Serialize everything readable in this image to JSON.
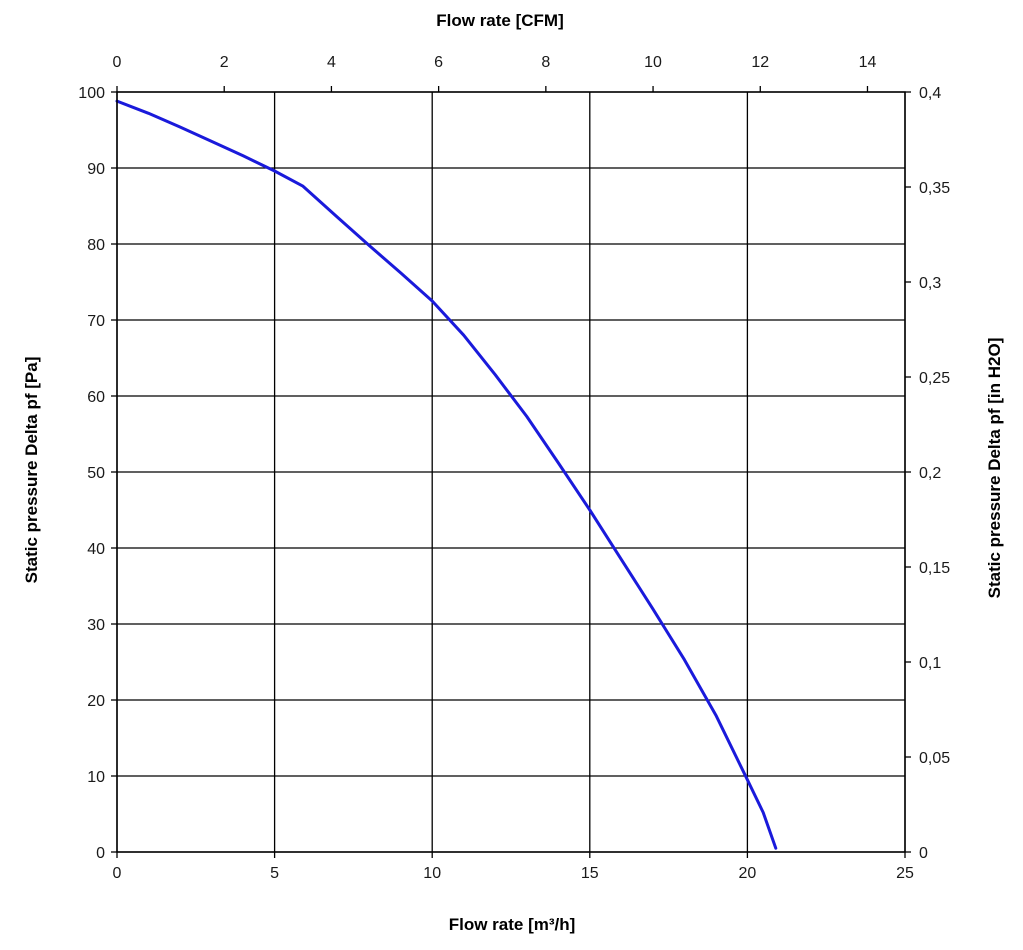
{
  "chart_data": {
    "type": "line",
    "title": "",
    "xlabel": "Flow rate [m³/h]",
    "ylabel": "Static pressure Delta pf [Pa]",
    "x2label": "Flow rate [CFM]",
    "y2label": "Static pressure Delta pf [in H2O]",
    "xlim": [
      0,
      25
    ],
    "ylim": [
      0,
      100
    ],
    "x2lim": [
      0,
      14.7
    ],
    "y2lim": [
      0,
      0.4
    ],
    "x_ticks": [
      "0",
      "5",
      "10",
      "15",
      "20",
      "25"
    ],
    "y_ticks": [
      "0",
      "10",
      "20",
      "30",
      "40",
      "50",
      "60",
      "70",
      "80",
      "90",
      "100"
    ],
    "x2_ticks": [
      "0",
      "2",
      "4",
      "6",
      "8",
      "10",
      "12",
      "14"
    ],
    "y2_ticks": [
      "0",
      "0,05",
      "0,1",
      "0,15",
      "0,2",
      "0,25",
      "0,3",
      "0,35",
      "0,4"
    ],
    "grid": true,
    "series": [
      {
        "color": "#1a1adb",
        "x": [
          0,
          1,
          2,
          3,
          4,
          5,
          5.9,
          7,
          8,
          9,
          10,
          11,
          12,
          13,
          14,
          15,
          16,
          17,
          18,
          19,
          20,
          20.5,
          20.9
        ],
        "y": [
          98.8,
          97.2,
          95.4,
          93.5,
          91.6,
          89.6,
          87.6,
          83.5,
          79.8,
          76.2,
          72.5,
          68.0,
          62.8,
          57.3,
          51.2,
          45.0,
          38.5,
          32.0,
          25.3,
          18.0,
          9.5,
          5.2,
          0.5
        ]
      }
    ]
  }
}
